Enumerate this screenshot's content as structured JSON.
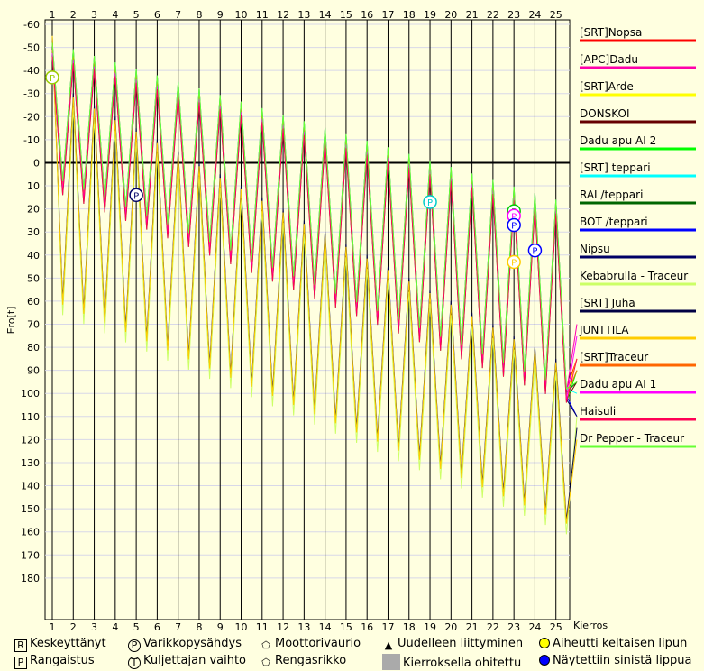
{
  "chart_data": {
    "type": "line",
    "ylabel": "Ero[t]",
    "xlabel": "Kierros",
    "x_ticks": [
      "1",
      "2",
      "3",
      "4",
      "5",
      "6",
      "7",
      "8",
      "9",
      "10",
      "11",
      "12",
      "13",
      "14",
      "15",
      "16",
      "17",
      "18",
      "19",
      "20",
      "21",
      "22",
      "23",
      "24",
      "25"
    ],
    "y_ticks": [
      "-60",
      "-50",
      "-40",
      "-30",
      "-20",
      "-10",
      "0",
      "10",
      "20",
      "30",
      "40",
      "50",
      "60",
      "70",
      "80",
      "90",
      "100",
      "110",
      "120",
      "130",
      "140",
      "150",
      "160",
      "170",
      "180"
    ],
    "ylim": [
      -60,
      200
    ],
    "xlim": [
      1,
      26
    ],
    "grid": true,
    "legend_position": "right",
    "series": [
      {
        "name": "[SRT]Nopsa",
        "color": "#ff0000",
        "kind": "leader",
        "end": 85
      },
      {
        "name": "[APC]Dadu",
        "color": "#ff00aa",
        "kind": "leader",
        "end": 70
      },
      {
        "name": "[SRT]Arde",
        "color": "#ffff00",
        "kind": "leader",
        "end": 85
      },
      {
        "name": "DONSKOI",
        "color": "#660000",
        "kind": "leader",
        "end": 95
      },
      {
        "name": "Dadu apu AI 2",
        "color": "#00ff00",
        "kind": "leader",
        "end": 90
      },
      {
        "name": "[SRT] teppari",
        "color": "#00ffff",
        "kind": "leader",
        "end": 100
      },
      {
        "name": "RAI /teppari",
        "color": "#006600",
        "kind": "leader",
        "end": 95
      },
      {
        "name": "BOT /teppari",
        "color": "#0000ff",
        "kind": "leader",
        "end": 110
      },
      {
        "name": "Nipsu",
        "color": "#000066",
        "kind": "leader",
        "end": 110
      },
      {
        "name": "Kebabrulla - Traceur",
        "color": "#ccff66",
        "kind": "slow",
        "end": 110
      },
      {
        "name": "[SRT] Juha",
        "color": "#000044",
        "kind": "slow",
        "end": 115
      },
      {
        "name": "JUNTTILA",
        "color": "#ffcc00",
        "kind": "slow",
        "end": 120
      },
      {
        "name": "[SRT]Traceur",
        "color": "#ff6600",
        "kind": "leader",
        "end": 90
      },
      {
        "name": "Dadu apu AI 1",
        "color": "#ff00ff",
        "kind": "leader",
        "end": 75
      },
      {
        "name": "Haisuli",
        "color": "#ff0055",
        "kind": "leader",
        "end": 85
      },
      {
        "name": "Dr Pepper - Traceur",
        "color": "#66ff33",
        "kind": "leader",
        "end": 95
      }
    ],
    "pit_markers": [
      {
        "lap": 1,
        "value": -37,
        "color": "#99cc00"
      },
      {
        "lap": 5,
        "value": 14,
        "color": "#000066"
      },
      {
        "lap": 19,
        "value": 17,
        "color": "#00cccc"
      },
      {
        "lap": 23,
        "value": 21,
        "color": "#00cc00"
      },
      {
        "lap": 23,
        "value": 23,
        "color": "#ff00ff"
      },
      {
        "lap": 23,
        "value": 27,
        "color": "#0000ff"
      },
      {
        "lap": 23,
        "value": 43,
        "color": "#ffcc00"
      },
      {
        "lap": 24,
        "value": 38,
        "color": "#0000ff"
      }
    ]
  },
  "footer": {
    "retired": "Keskeyttänyt",
    "penalty": "Rangaistus",
    "pit": "Varikkopysähdys",
    "driver_change": "Kuljettajan vaihto",
    "engine": "Moottorivaurio",
    "tyre": "Rengasrikko",
    "rejoin": "Uudelleen liittyminen",
    "lapped": "Kierroksella ohitettu",
    "yellow": "Aiheutti keltaisen lipun",
    "blue": "Näytettiin sinistä lippua",
    "icon_R": "R",
    "icon_P_sq": "P",
    "icon_P_ci": "P",
    "icon_T": "T"
  }
}
